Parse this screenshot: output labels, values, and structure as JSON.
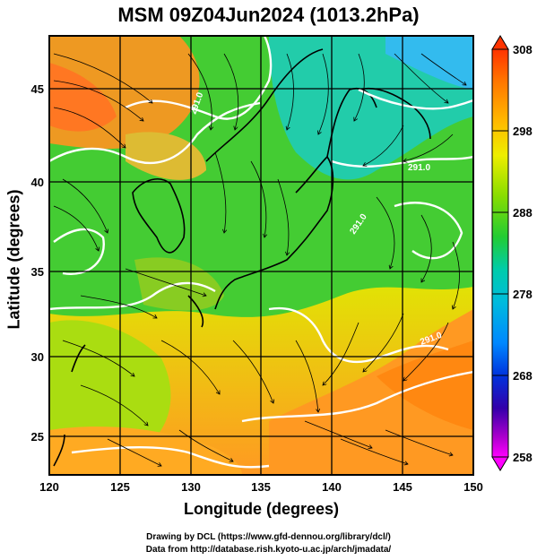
{
  "title": "MSM 09Z04Jun2024 (1013.2hPa)",
  "xlabel": "Longitude (degrees)",
  "ylabel": "Latitude  (degrees)",
  "credits": [
    "Drawing by DCL (https://www.gfd-dennou.org/library/dcl/)",
    "Data from http://database.rish.kyoto-u.ac.jp/arch/jmadata/"
  ],
  "map": {
    "lon_range": [
      120,
      150
    ],
    "lat_range": [
      22.4,
      47.6
    ],
    "x_ticks": [
      "120",
      "125",
      "130",
      "135",
      "140",
      "145",
      "150"
    ],
    "y_ticks": [
      "25",
      "30",
      "35",
      "40",
      "45"
    ],
    "contour_labels": [
      "291.0",
      "291.0",
      "291.0",
      "291.0"
    ]
  },
  "colorbar": {
    "ticks": [
      "308",
      "298",
      "288",
      "278",
      "268",
      "258"
    ],
    "colors": [
      "#ff3300",
      "#ff8800",
      "#ffcc00",
      "#ddee00",
      "#88dd00",
      "#33cc33",
      "#00cc99",
      "#00bbdd",
      "#0099ff",
      "#0044dd",
      "#2200aa",
      "#9900bb",
      "#ff00ff"
    ]
  }
}
